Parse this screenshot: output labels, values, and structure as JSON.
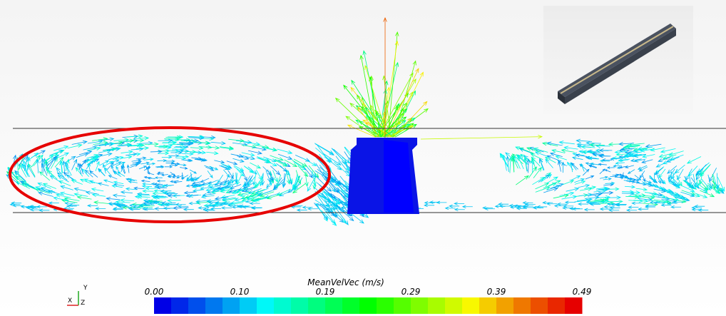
{
  "legend": {
    "title": "MeanVelVec (m/s)",
    "ticks": [
      "0.00",
      "0.10",
      "0.19",
      "0.29",
      "0.39",
      "0.49"
    ]
  },
  "triad": {
    "x": "X",
    "y": "Y",
    "z": "Z"
  }
}
